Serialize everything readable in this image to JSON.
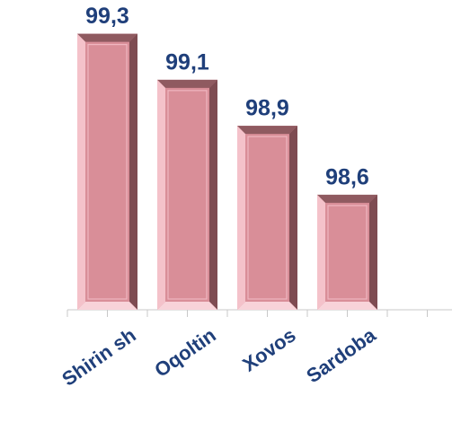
{
  "chart_data": {
    "type": "bar",
    "categories": [
      "Shirin sh",
      "Oqoltin",
      "Xovos",
      "Sardoba"
    ],
    "values": [
      99.3,
      99.1,
      98.9,
      98.6
    ],
    "value_labels": [
      "99,3",
      "99,1",
      "98,9",
      "98,6"
    ],
    "color": "#d98e98",
    "ylim": [
      98.1,
      99.4
    ]
  }
}
